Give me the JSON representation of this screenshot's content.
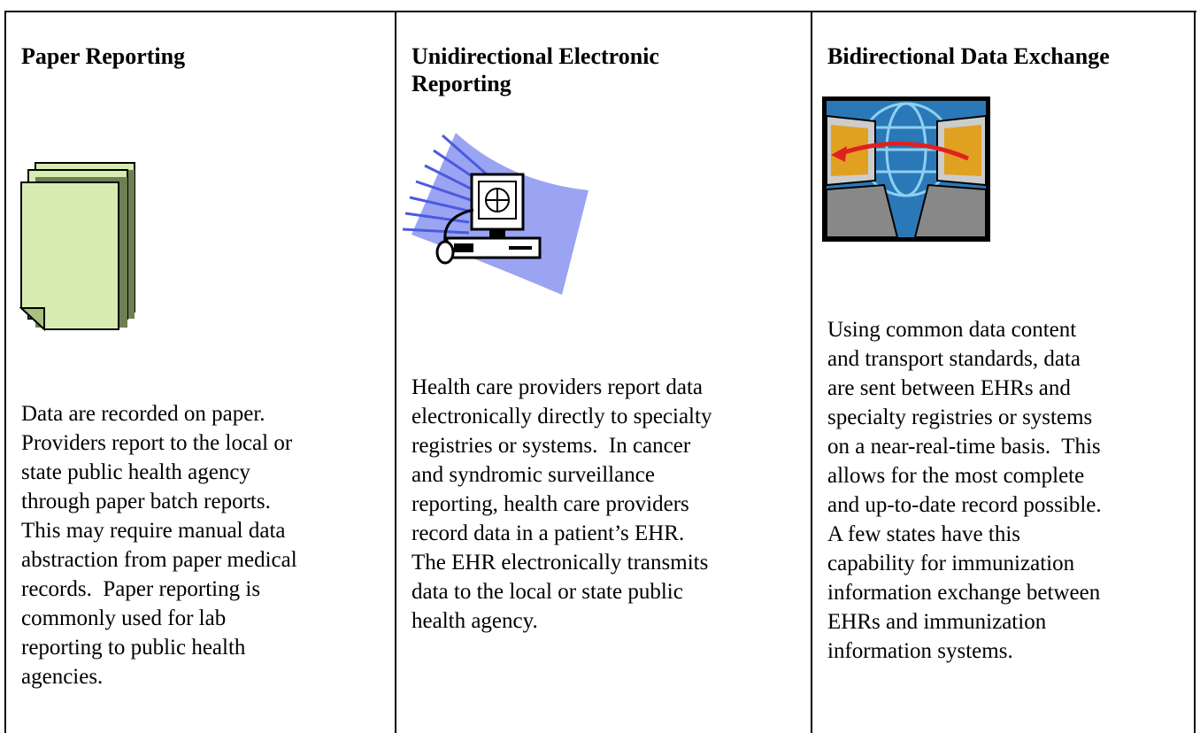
{
  "columns": [
    {
      "heading": "Paper Reporting",
      "lines": [
        "Data are recorded on paper.",
        "Providers report to the local or",
        "state public health agency",
        "through paper batch reports.",
        "This may require manual data",
        "abstraction from paper medical",
        "records.  Paper reporting is",
        "commonly used for lab",
        "reporting to public health",
        "agencies."
      ]
    },
    {
      "heading": "Unidirectional Electronic Reporting",
      "lines": [
        "Health care providers report data",
        "electronically directly to specialty",
        "registries or systems.  In cancer",
        "and syndromic surveillance",
        "reporting, health care providers",
        "record data in a patient’s EHR.",
        "The EHR electronically transmits",
        "data to the local or state public",
        "health agency."
      ]
    },
    {
      "heading": "Bidirectional Data Exchange",
      "lines": [
        "Using common data content",
        "and transport standards, data",
        "are sent between EHRs and",
        "specialty registries or systems",
        "on a near-real-time basis.  This",
        "allows for the most complete",
        "and up-to-date record possible.",
        "A few states have this",
        "capability for immunization",
        "information exchange between",
        "EHRs and immunization",
        "information systems."
      ]
    }
  ]
}
